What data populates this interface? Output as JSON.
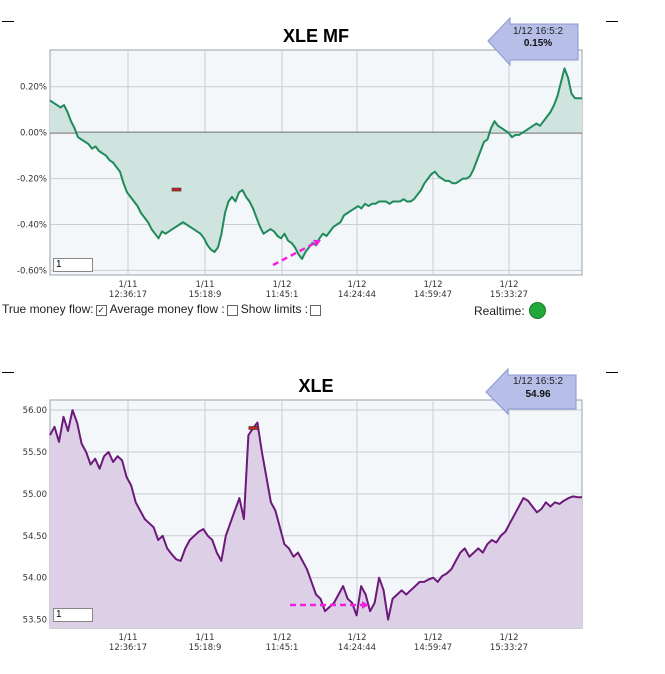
{
  "chart_data": [
    {
      "type": "area",
      "title": "XLE MF",
      "y_ticks": [
        "0.20%",
        "0.00%",
        "-0.20%",
        "-0.40%",
        "-0.60%"
      ],
      "y_tick_values": [
        0.2,
        0.0,
        -0.2,
        -0.4,
        -0.6
      ],
      "ylim": [
        -0.62,
        0.36
      ],
      "x_ticks": [
        {
          "date": "1/11",
          "time": "12:36:17"
        },
        {
          "date": "1/11",
          "time": "15:18:9"
        },
        {
          "date": "1/12",
          "time": "11:45:1"
        },
        {
          "date": "1/12",
          "time": "14:24:44"
        },
        {
          "date": "1/12",
          "time": "14:59:47"
        },
        {
          "date": "1/12",
          "time": "15:33:27"
        }
      ],
      "series": [
        {
          "values": [
            0.14,
            0.13,
            0.12,
            0.11,
            0.12,
            0.09,
            0.05,
            0.02,
            -0.02,
            -0.03,
            -0.04,
            -0.05,
            -0.07,
            -0.06,
            -0.08,
            -0.09,
            -0.1,
            -0.12,
            -0.13,
            -0.15,
            -0.17,
            -0.22,
            -0.26,
            -0.28,
            -0.3,
            -0.32,
            -0.35,
            -0.37,
            -0.39,
            -0.42,
            -0.44,
            -0.46,
            -0.43,
            -0.44,
            -0.43,
            -0.42,
            -0.41,
            -0.4,
            -0.39,
            -0.4,
            -0.41,
            -0.42,
            -0.43,
            -0.44,
            -0.46,
            -0.49,
            -0.51,
            -0.52,
            -0.5,
            -0.44,
            -0.35,
            -0.3,
            -0.28,
            -0.3,
            -0.26,
            -0.25,
            -0.28,
            -0.3,
            -0.33,
            -0.37,
            -0.41,
            -0.44,
            -0.43,
            -0.42,
            -0.43,
            -0.45,
            -0.46,
            -0.44,
            -0.47,
            -0.48,
            -0.5,
            -0.53,
            -0.55,
            -0.52,
            -0.5,
            -0.48,
            -0.49,
            -0.46,
            -0.44,
            -0.45,
            -0.43,
            -0.41,
            -0.4,
            -0.39,
            -0.36,
            -0.35,
            -0.34,
            -0.33,
            -0.32,
            -0.33,
            -0.31,
            -0.32,
            -0.31,
            -0.31,
            -0.3,
            -0.3,
            -0.3,
            -0.31,
            -0.3,
            -0.3,
            -0.3,
            -0.29,
            -0.3,
            -0.3,
            -0.29,
            -0.27,
            -0.25,
            -0.22,
            -0.2,
            -0.18,
            -0.17,
            -0.19,
            -0.2,
            -0.21,
            -0.21,
            -0.22,
            -0.22,
            -0.21,
            -0.2,
            -0.2,
            -0.19,
            -0.16,
            -0.12,
            -0.08,
            -0.04,
            -0.03,
            0.02,
            0.05,
            0.03,
            0.02,
            0.01,
            0.0,
            -0.02,
            -0.01,
            -0.01,
            0.0,
            0.01,
            0.02,
            0.03,
            0.04,
            0.03,
            0.05,
            0.07,
            0.09,
            0.12,
            0.16,
            0.22,
            0.28,
            0.24,
            0.17,
            0.15,
            0.15,
            0.15
          ]
        }
      ],
      "marker_value": -0.25,
      "badge": {
        "time": "1/12 16:5:2",
        "value": "0.15%"
      },
      "range_input": "1"
    },
    {
      "type": "area",
      "title": "XLE",
      "y_ticks": [
        "56.00",
        "55.50",
        "55.00",
        "54.50",
        "54.00",
        "53.50"
      ],
      "y_tick_values": [
        56.0,
        55.5,
        55.0,
        54.5,
        54.0,
        53.5
      ],
      "ylim": [
        53.4,
        56.12
      ],
      "x_ticks": [
        {
          "date": "1/11",
          "time": "12:36:17"
        },
        {
          "date": "1/11",
          "time": "15:18:9"
        },
        {
          "date": "1/12",
          "time": "11:45:1"
        },
        {
          "date": "1/12",
          "time": "14:24:44"
        },
        {
          "date": "1/12",
          "time": "14:59:47"
        },
        {
          "date": "1/12",
          "time": "15:33:27"
        }
      ],
      "series": [
        {
          "values": [
            55.7,
            55.8,
            55.62,
            55.92,
            55.75,
            56.0,
            55.85,
            55.6,
            55.5,
            55.35,
            55.42,
            55.3,
            55.45,
            55.5,
            55.38,
            55.45,
            55.4,
            55.2,
            55.1,
            54.9,
            54.8,
            54.7,
            54.65,
            54.6,
            54.45,
            54.5,
            54.35,
            54.28,
            54.22,
            54.2,
            54.35,
            54.45,
            54.5,
            54.55,
            54.58,
            54.5,
            54.45,
            54.3,
            54.2,
            54.5,
            54.65,
            54.8,
            54.95,
            54.7,
            55.7,
            55.78,
            55.85,
            55.5,
            55.2,
            54.9,
            54.8,
            54.6,
            54.4,
            54.35,
            54.25,
            54.3,
            54.2,
            54.1,
            53.95,
            53.8,
            53.75,
            53.6,
            53.65,
            53.7,
            53.8,
            53.9,
            53.75,
            53.7,
            53.55,
            53.9,
            53.8,
            53.6,
            53.7,
            54.0,
            53.85,
            53.5,
            53.75,
            53.8,
            53.85,
            53.8,
            53.85,
            53.9,
            53.95,
            53.95,
            53.98,
            54.0,
            53.95,
            54.02,
            54.05,
            54.1,
            54.2,
            54.3,
            54.35,
            54.25,
            54.3,
            54.35,
            54.3,
            54.4,
            54.45,
            54.42,
            54.5,
            54.55,
            54.65,
            54.75,
            54.85,
            54.95,
            54.92,
            54.85,
            54.78,
            54.82,
            54.9,
            54.85,
            54.9,
            54.88,
            54.92,
            54.95,
            54.97,
            54.96,
            54.96
          ]
        }
      ],
      "marker_value": 55.78,
      "badge": {
        "time": "1/12 16:5:2",
        "value": "54.96"
      },
      "range_input": "1"
    }
  ],
  "controls": {
    "true_money_flow_label": "True money flow:",
    "true_money_flow_checked": "✓",
    "average_money_flow_label": "Average money flow :",
    "show_limits_label": "Show limits :",
    "realtime_label": "Realtime:"
  },
  "colors": {
    "mf_line": "#1f8a5a",
    "mf_fill": "#cfe3df",
    "price_line": "#6b1a7a",
    "price_fill": "#ddd0e6",
    "annotation_arrow": "#ee22dd",
    "marker": "#cc2222"
  }
}
